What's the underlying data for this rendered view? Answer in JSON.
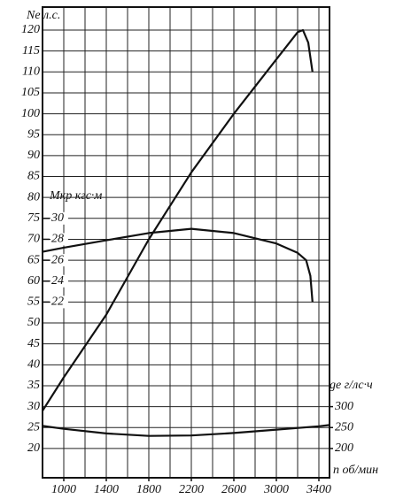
{
  "chart_data": {
    "type": "line",
    "y_label": "Ne л.с.",
    "y2_label": "Mкр кгс·м",
    "y3_label": "ge г/лс·ч",
    "x_label": "n об/мин",
    "xlim": [
      800,
      3500
    ],
    "xticks": [
      1000,
      1400,
      1800,
      2200,
      2600,
      3000,
      3400
    ],
    "x_grid": [
      800,
      1000,
      1200,
      1400,
      1600,
      1800,
      2000,
      2200,
      2400,
      2600,
      2800,
      3000,
      3200,
      3400
    ],
    "ylim": [
      13,
      125.5
    ],
    "yticks": [
      20,
      25,
      30,
      35,
      40,
      45,
      50,
      55,
      60,
      65,
      70,
      75,
      80,
      85,
      90,
      95,
      100,
      105,
      110,
      115,
      120
    ],
    "y2lim": [
      5.2,
      50.2
    ],
    "y2ticks": [
      22,
      24,
      26,
      28,
      30
    ],
    "y3lim": [
      130,
      1255
    ],
    "y3ticks": [
      200,
      250,
      300
    ],
    "grid": true,
    "series": [
      {
        "color": "#111111",
        "x": [
          800,
          1000,
          1400,
          1800,
          2200,
          2600,
          3000,
          3200,
          3250,
          3300,
          3340
        ],
        "values": [
          29,
          37,
          52,
          70,
          86,
          100,
          113,
          119.5,
          120,
          117,
          110
        ]
      },
      {
        "color": "#111111",
        "axis": "y2",
        "x": [
          800,
          1000,
          1400,
          1800,
          2200,
          2600,
          3000,
          3200,
          3280,
          3320,
          3340
        ],
        "values": [
          26.8,
          27.2,
          27.9,
          28.6,
          29.0,
          28.6,
          27.6,
          26.7,
          26.0,
          24.5,
          22.0
        ]
      },
      {
        "color": "#111111",
        "axis": "y3",
        "x": [
          800,
          1000,
          1400,
          1800,
          2200,
          2600,
          3000,
          3400,
          3500
        ],
        "values": [
          254,
          247,
          236,
          230,
          231,
          237,
          245,
          253,
          256
        ]
      }
    ]
  }
}
